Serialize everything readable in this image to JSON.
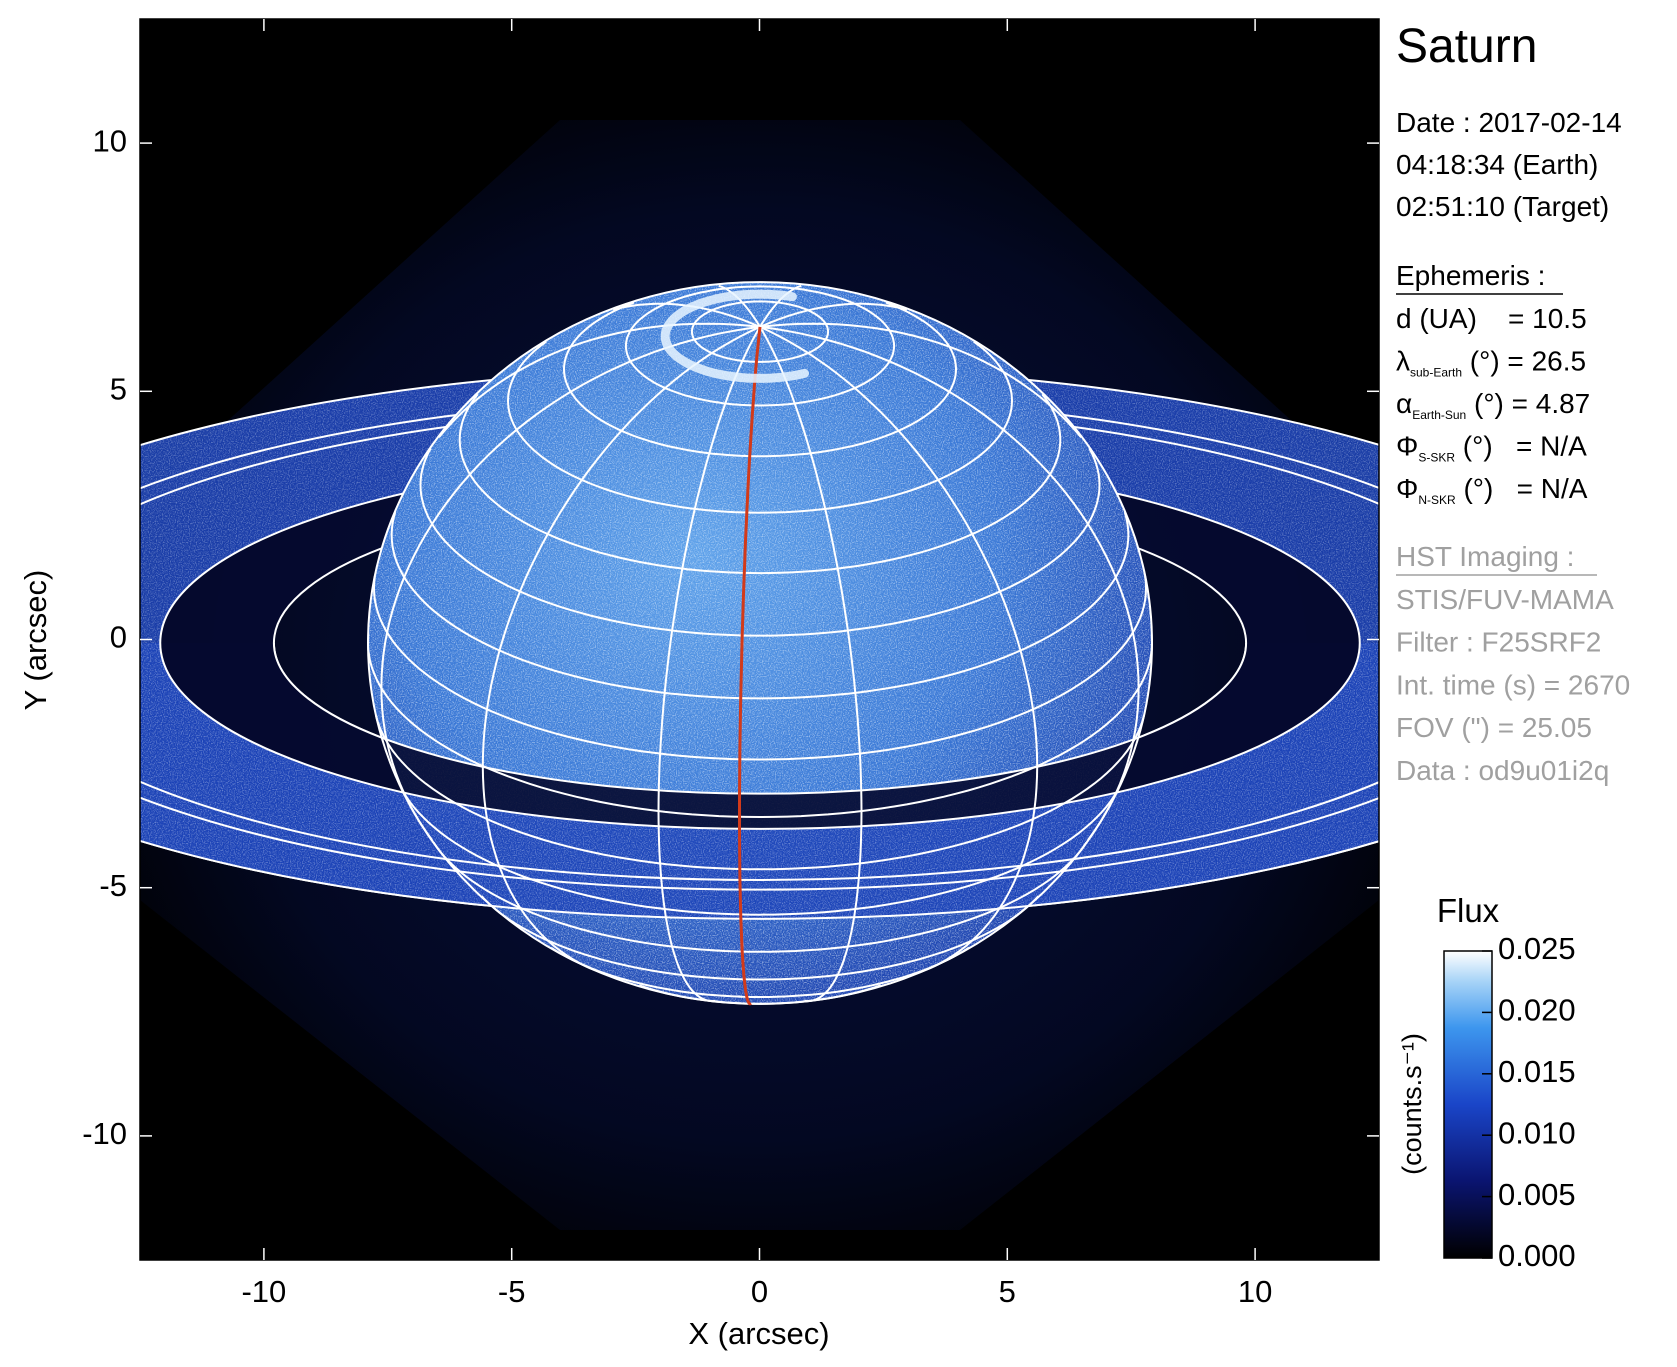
{
  "chart_data": {
    "type": "image",
    "title": "Saturn",
    "x_label": "X (arcsec)",
    "y_label": "Y (arcsec)",
    "xlim": [
      -12.5,
      12.5
    ],
    "ylim": [
      -12.5,
      12.5
    ],
    "xticks": [
      -10,
      -5,
      0,
      5,
      10
    ],
    "yticks": [
      -10,
      -5,
      0,
      5,
      10
    ],
    "colorbar": {
      "title": "Flux",
      "label": "(counts.s⁻¹)",
      "lim": [
        0,
        0.025
      ],
      "ticks": [
        {
          "value": 0,
          "label": "0.000"
        },
        0.005,
        {
          "value": 0.01,
          "label": "0.010"
        },
        0.015,
        {
          "value": 0.02,
          "label": "0.020"
        },
        0.025
      ]
    }
  },
  "info": {
    "date": "Date : 2017-02-14",
    "time_earth": "04:18:34 (Earth)",
    "time_target": "02:51:10 (Target)",
    "ephemeris_title": "Ephemeris :",
    "ephemeris": [
      {
        "text": "d (UA)    = 10.5"
      },
      {
        "symbol": "λ",
        "sub": "sub-Earth",
        "text": " (°) = 26.5"
      },
      {
        "symbol": "α",
        "sub": "Earth-Sun",
        "text": " (°) = 4.87"
      },
      {
        "symbol": "Φ",
        "sub": "S-SKR",
        "text": " (°)   = N/A"
      },
      {
        "symbol": "Φ",
        "sub": "N-SKR",
        "text": " (°)   = N/A"
      }
    ],
    "hst_title": "HST Imaging :",
    "hst": [
      "STIS/FUV-MAMA",
      "Filter : F25SRF2",
      "Int. time (s) = 2670",
      "FOV (\") = 25.05",
      "Data : od9u01i2q"
    ]
  }
}
